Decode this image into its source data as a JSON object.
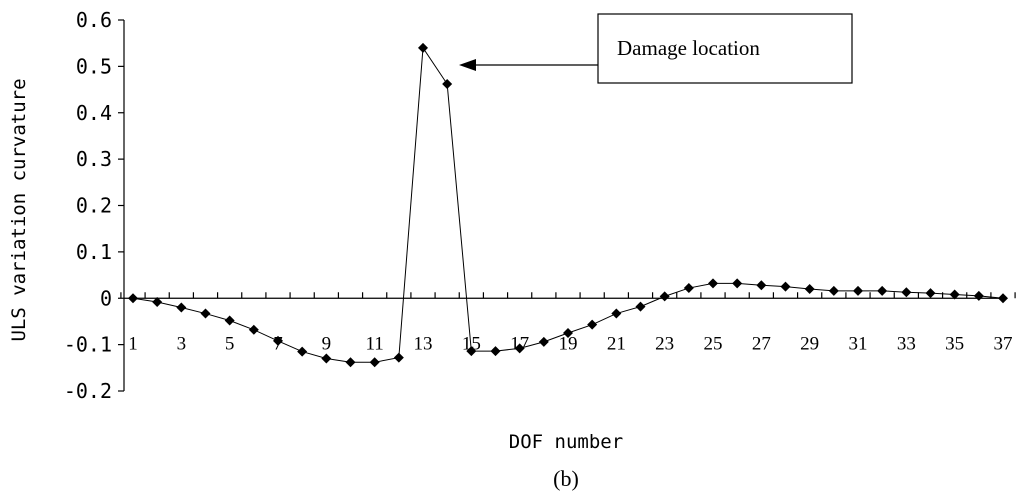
{
  "chart_data": {
    "type": "line",
    "xlabel": "DOF number",
    "ylabel": "ULS variation curvature",
    "ylim": [
      -0.2,
      0.6
    ],
    "yticks": [
      "0.6",
      "0.5",
      "0.4",
      "0.3",
      "0.2",
      "0.1",
      "0",
      "-0.1",
      "-0.2"
    ],
    "ytick_values": [
      0.6,
      0.5,
      0.4,
      0.3,
      0.2,
      0.1,
      0,
      -0.1,
      -0.2
    ],
    "xtick_labels": [
      "1",
      "3",
      "5",
      "7",
      "9",
      "11",
      "13",
      "15",
      "17",
      "19",
      "21",
      "23",
      "25",
      "27",
      "29",
      "31",
      "33",
      "35",
      "37"
    ],
    "x": [
      1,
      2,
      3,
      4,
      5,
      6,
      7,
      8,
      9,
      10,
      11,
      12,
      13,
      14,
      15,
      16,
      17,
      18,
      19,
      20,
      21,
      22,
      23,
      24,
      25,
      26,
      27,
      28,
      29,
      30,
      31,
      32,
      33,
      34,
      35,
      36,
      37
    ],
    "series": [
      {
        "values": [
          0.0,
          -0.008,
          -0.02,
          -0.033,
          -0.048,
          -0.068,
          -0.092,
          -0.115,
          -0.13,
          -0.138,
          -0.138,
          -0.128,
          0.54,
          0.462,
          -0.114,
          -0.114,
          -0.108,
          -0.094,
          -0.075,
          -0.057,
          -0.033,
          -0.018,
          0.004,
          0.022,
          0.032,
          0.032,
          0.028,
          0.025,
          0.02,
          0.016,
          0.016,
          0.016,
          0.013,
          0.011,
          0.008,
          0.005,
          0.0
        ],
        "color": "#000000",
        "marker": "diamond"
      }
    ],
    "annotation": {
      "text": "Damage location",
      "arrow_target_x": 14,
      "arrow_target_y": 0.5
    },
    "caption": "(b)",
    "grid": false,
    "legend": "none"
  }
}
